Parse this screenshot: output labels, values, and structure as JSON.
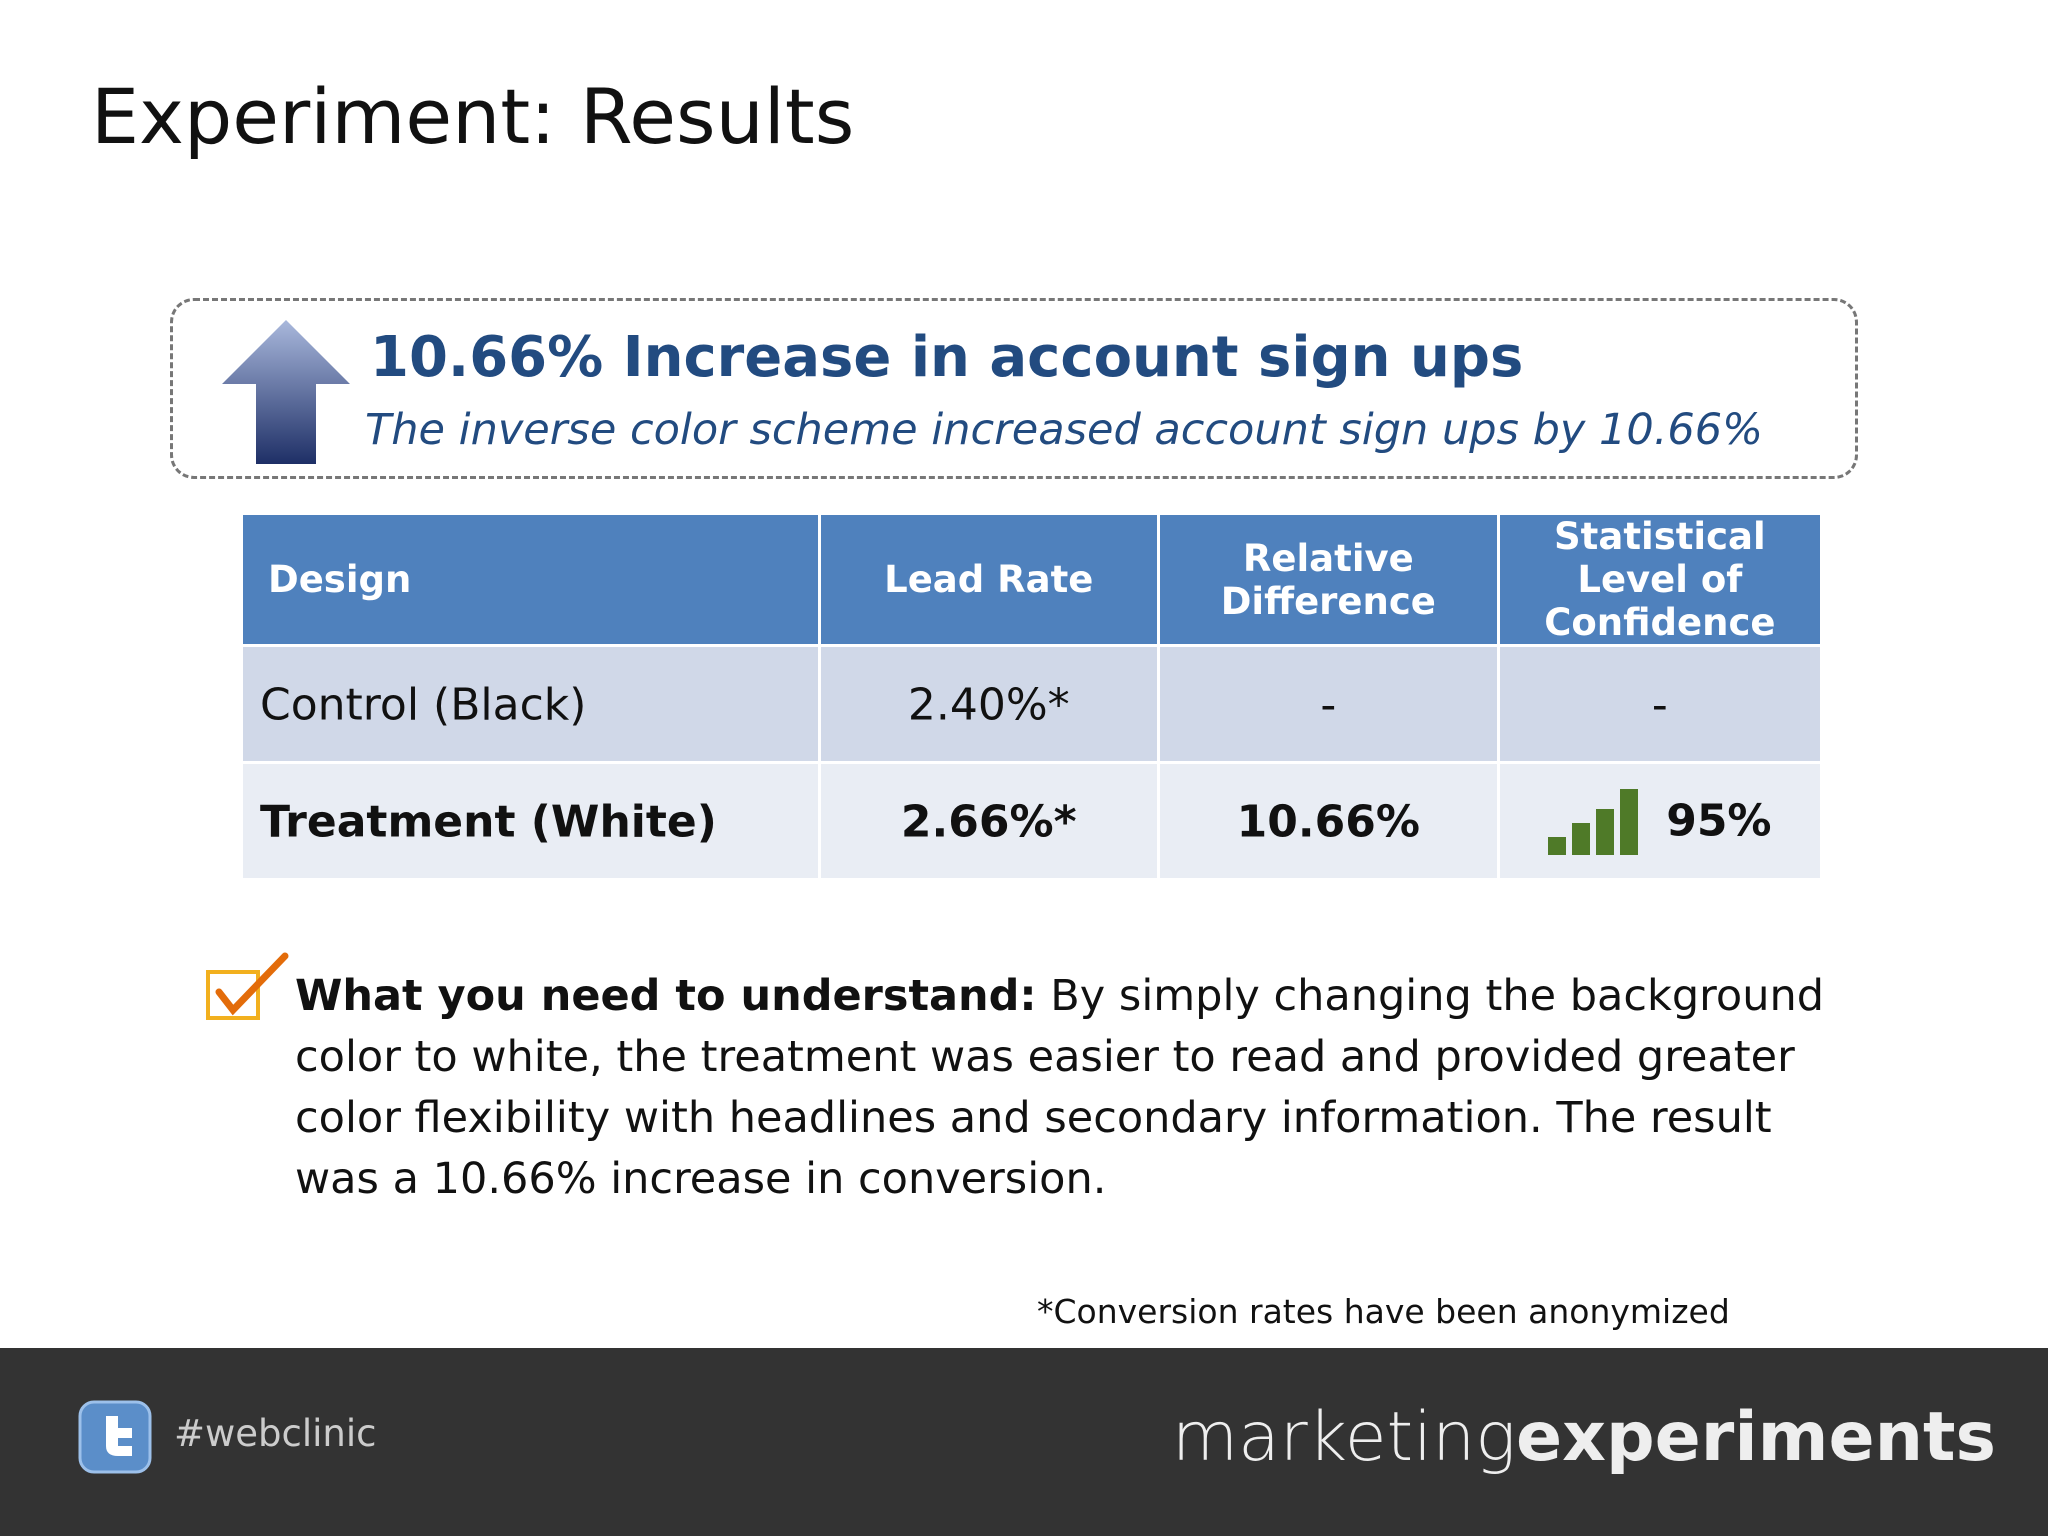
{
  "header": {
    "title": "Experiment: Results"
  },
  "callout": {
    "headline": "10.66% Increase in account sign ups",
    "subheadline": "The inverse color scheme increased account sign ups by 10.66%"
  },
  "table": {
    "columns": [
      "Design",
      "Lead Rate",
      "Relative Difference",
      "Statistical Level of Confidence"
    ],
    "rows": [
      [
        "Control (Black)",
        "2.40%*",
        "-",
        "-"
      ],
      [
        "Treatment (White)",
        "2.66%*",
        "10.66%",
        "95%"
      ]
    ]
  },
  "note": {
    "label": "What you need to understand:",
    "text": "By simply changing the background color to white, the treatment was easier to read and provided greater color flexibility with headlines and secondary information. The result was a 10.66% increase in conversion."
  },
  "footnote": "*Conversion rates have been anonymized",
  "footer": {
    "hashtag": "#webclinic",
    "logo_light": "marketing",
    "logo_bold": "experiments"
  }
}
